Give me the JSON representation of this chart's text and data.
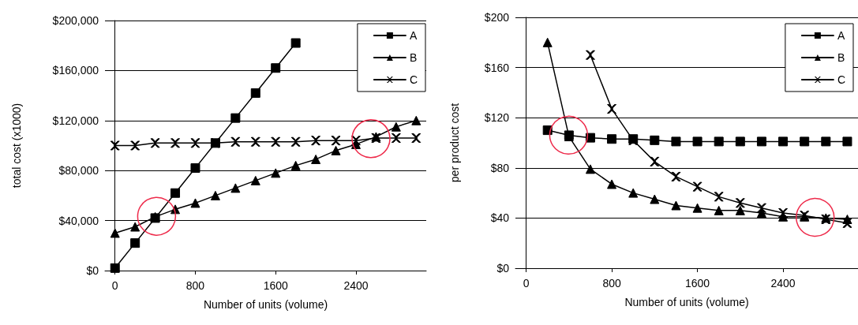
{
  "chart_data": [
    {
      "type": "line",
      "ylabel": "total cost (x1000)",
      "xlabel": "Number of units (volume)",
      "x": [
        0,
        200,
        400,
        600,
        800,
        1000,
        1200,
        1400,
        1600,
        1800,
        2000,
        2200,
        2400,
        2600,
        2800,
        3000
      ],
      "series": [
        {
          "name": "A",
          "color": "#000000",
          "marker": "square",
          "values": [
            2000,
            22000,
            42000,
            62000,
            82000,
            102000,
            122000,
            142000,
            162000,
            182000,
            null,
            null,
            null,
            null,
            null,
            null
          ]
        },
        {
          "name": "B",
          "color": "#000000",
          "marker": "triangle",
          "values": [
            30000,
            35000,
            43000,
            49000,
            54000,
            60000,
            66000,
            72000,
            78000,
            84000,
            89000,
            96000,
            101000,
            107000,
            115000,
            120000
          ]
        },
        {
          "name": "C",
          "color": "#000000",
          "marker": "cross",
          "values": [
            100000,
            100000,
            102000,
            102000,
            102000,
            102000,
            103000,
            103000,
            103000,
            103000,
            104000,
            104000,
            104000,
            106000,
            106000,
            106000
          ]
        }
      ],
      "xlim": [
        -100,
        3100
      ],
      "xticks": [
        0,
        800,
        1600,
        2400
      ],
      "ylim": [
        0,
        200000
      ],
      "yticks": [
        {
          "value": 0,
          "label": "$0"
        },
        {
          "value": 40000,
          "label": "$40,000"
        },
        {
          "value": 80000,
          "label": "$80,000"
        },
        {
          "value": 120000,
          "label": "$120,000"
        },
        {
          "value": 160000,
          "label": "$160,000"
        },
        {
          "value": 200000,
          "label": "$200,000"
        }
      ],
      "grid": "y",
      "legend": "top right",
      "line_style": "solid"
    },
    {
      "type": "line",
      "ylabel": "per product cost",
      "xlabel": "Number of units (volume)",
      "x": [
        200,
        400,
        600,
        800,
        1000,
        1200,
        1400,
        1600,
        1800,
        2000,
        2200,
        2400,
        2600,
        2800,
        3000
      ],
      "series": [
        {
          "name": "A",
          "color": "#000000",
          "marker": "square",
          "values": [
            110,
            106,
            104,
            103,
            103,
            102,
            101,
            101,
            101,
            101,
            101,
            101,
            101,
            101,
            101
          ]
        },
        {
          "name": "B",
          "color": "#000000",
          "marker": "triangle",
          "values": [
            180,
            105,
            79,
            67,
            60,
            55,
            50,
            48,
            46,
            46,
            44,
            41,
            41,
            40,
            39
          ]
        },
        {
          "name": "C",
          "color": "#000000",
          "marker": "cross",
          "values": [
            null,
            null,
            170,
            127,
            102,
            85,
            73,
            65,
            57,
            52,
            48,
            44,
            42,
            39,
            36
          ]
        }
      ],
      "xlim": [
        -100,
        3100
      ],
      "xticks": [
        0,
        800,
        1600,
        2400
      ],
      "ylim": [
        0,
        200
      ],
      "yticks": [
        {
          "value": 0,
          "label": "$0"
        },
        {
          "value": 40,
          "label": "$40"
        },
        {
          "value": 80,
          "label": "$80"
        },
        {
          "value": 120,
          "label": "$120"
        },
        {
          "value": 160,
          "label": "$160"
        },
        {
          "value": 200,
          "label": "$200"
        }
      ],
      "grid": "y",
      "legend": "top right",
      "line_style": "solid"
    }
  ]
}
